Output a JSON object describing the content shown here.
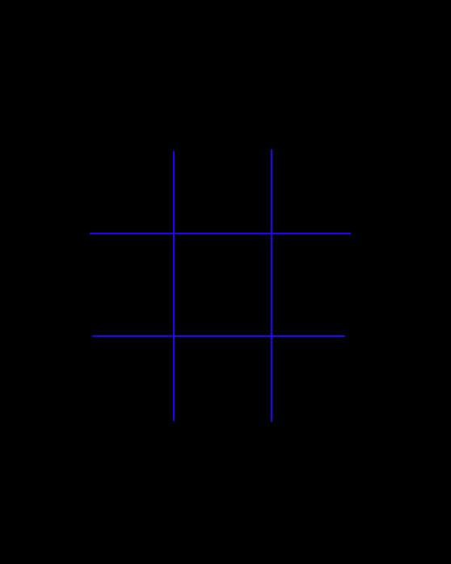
{
  "game": {
    "board": {
      "rows": 3,
      "cols": 3,
      "cells": [
        [
          "",
          "",
          ""
        ],
        [
          "",
          "",
          ""
        ],
        [
          "",
          "",
          ""
        ]
      ]
    },
    "colors": {
      "background": "#000000",
      "grid_line": "#2200ff"
    }
  }
}
